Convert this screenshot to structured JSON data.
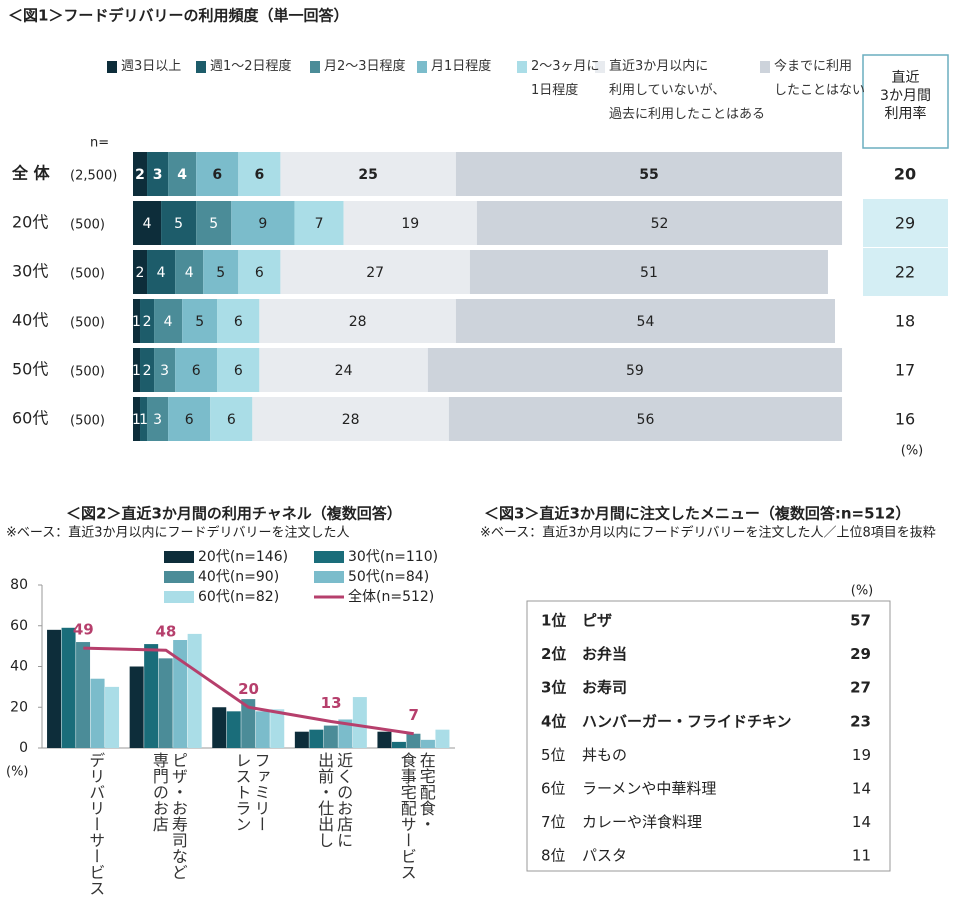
{
  "chart_data": [
    {
      "type": "bar",
      "stacked": true,
      "horizontal": true,
      "title": "＜図1＞フードデリバリーの利用頻度（単一回答）",
      "n_label": "n=",
      "categories": [
        "全 体",
        "20代",
        "30代",
        "40代",
        "50代",
        "60代"
      ],
      "sample_sizes": [
        "(2,500)",
        "(500)",
        "(500)",
        "(500)",
        "(500)",
        "(500)"
      ],
      "xlim": [
        0,
        100
      ],
      "series": [
        {
          "name": "週3日以上",
          "color": "#0d2d3a",
          "values": [
            2,
            4,
            2,
            1,
            1,
            1
          ]
        },
        {
          "name": "週1～2日程度",
          "color": "#1d5c6a",
          "values": [
            3,
            5,
            4,
            2,
            2,
            1
          ]
        },
        {
          "name": "月2～3日程度",
          "color": "#4b8c98",
          "values": [
            4,
            5,
            4,
            4,
            3,
            3
          ]
        },
        {
          "name": "月1日程度",
          "color": "#7bbccb",
          "values": [
            6,
            9,
            5,
            5,
            6,
            6
          ]
        },
        {
          "name": "2～3ヶ月に\n1日程度",
          "color": "#aadde7",
          "values": [
            6,
            7,
            6,
            6,
            6,
            6
          ]
        },
        {
          "name": "直近3か月以内に\n利用していないが、\n過去に利用したことはある",
          "color": "#e8ebef",
          "values": [
            25,
            19,
            27,
            28,
            24,
            28
          ]
        },
        {
          "name": "今までに利用\nしたことはない",
          "color": "#cdd3db",
          "values": [
            55,
            52,
            51,
            54,
            59,
            56
          ]
        }
      ],
      "rate_title": "直近\n3か月間\n利用率",
      "rates": [
        20,
        29,
        22,
        18,
        17,
        16
      ],
      "unit": "(%)"
    },
    {
      "type": "bar",
      "title": "＜図2＞直近3か月間の利用チャネル（複数回答）",
      "subtitle": "※ベース：直近3か月以内にフードデリバリーを注文した人",
      "categories": [
        "デリバリーサービス",
        "ピザ・お寿司など\n専門のお店",
        "ファミリー\nレストラン",
        "近くのお店に\n出前・仕出し",
        "在宅配食・\n食事宅配サービス"
      ],
      "ylim": [
        0,
        80
      ],
      "yticks": [
        0,
        20,
        40,
        60,
        80
      ],
      "unit": "(%)",
      "series": [
        {
          "name": "20代(n=146)",
          "color": "#0d2d3a",
          "values": [
            58,
            40,
            20,
            8,
            8
          ]
        },
        {
          "name": "30代(n=110)",
          "color": "#1a6d7a",
          "values": [
            59,
            51,
            18,
            9,
            3
          ]
        },
        {
          "name": "40代(n=90)",
          "color": "#4b8c98",
          "values": [
            52,
            44,
            24,
            11,
            7
          ]
        },
        {
          "name": "50代(n=84)",
          "color": "#7bbccb",
          "values": [
            34,
            53,
            18,
            14,
            4
          ]
        },
        {
          "name": "60代(n=82)",
          "color": "#aadde7",
          "values": [
            30,
            56,
            19,
            25,
            9
          ]
        },
        {
          "name": "全体(n=512)",
          "type": "line",
          "color": "#b63f6c",
          "values": [
            49,
            48,
            20,
            13,
            7
          ]
        }
      ]
    }
  ],
  "table": {
    "title": "＜図3＞直近3か月間に注文したメニュー（複数回答:n=512）",
    "subtitle": "※ベース：直近3か月以内にフードデリバリーを注文した人／上位8項目を抜粋",
    "unit": "(%)",
    "rows": [
      [
        "1位",
        "ピザ",
        57
      ],
      [
        "2位",
        "お弁当",
        29
      ],
      [
        "3位",
        "お寿司",
        27
      ],
      [
        "4位",
        "ハンバーガー・フライドチキン",
        23
      ],
      [
        "5位",
        "丼もの",
        19
      ],
      [
        "6位",
        "ラーメンや中華料理",
        14
      ],
      [
        "7位",
        "カレーや洋食料理",
        14
      ],
      [
        "8位",
        "パスタ",
        11
      ]
    ]
  }
}
